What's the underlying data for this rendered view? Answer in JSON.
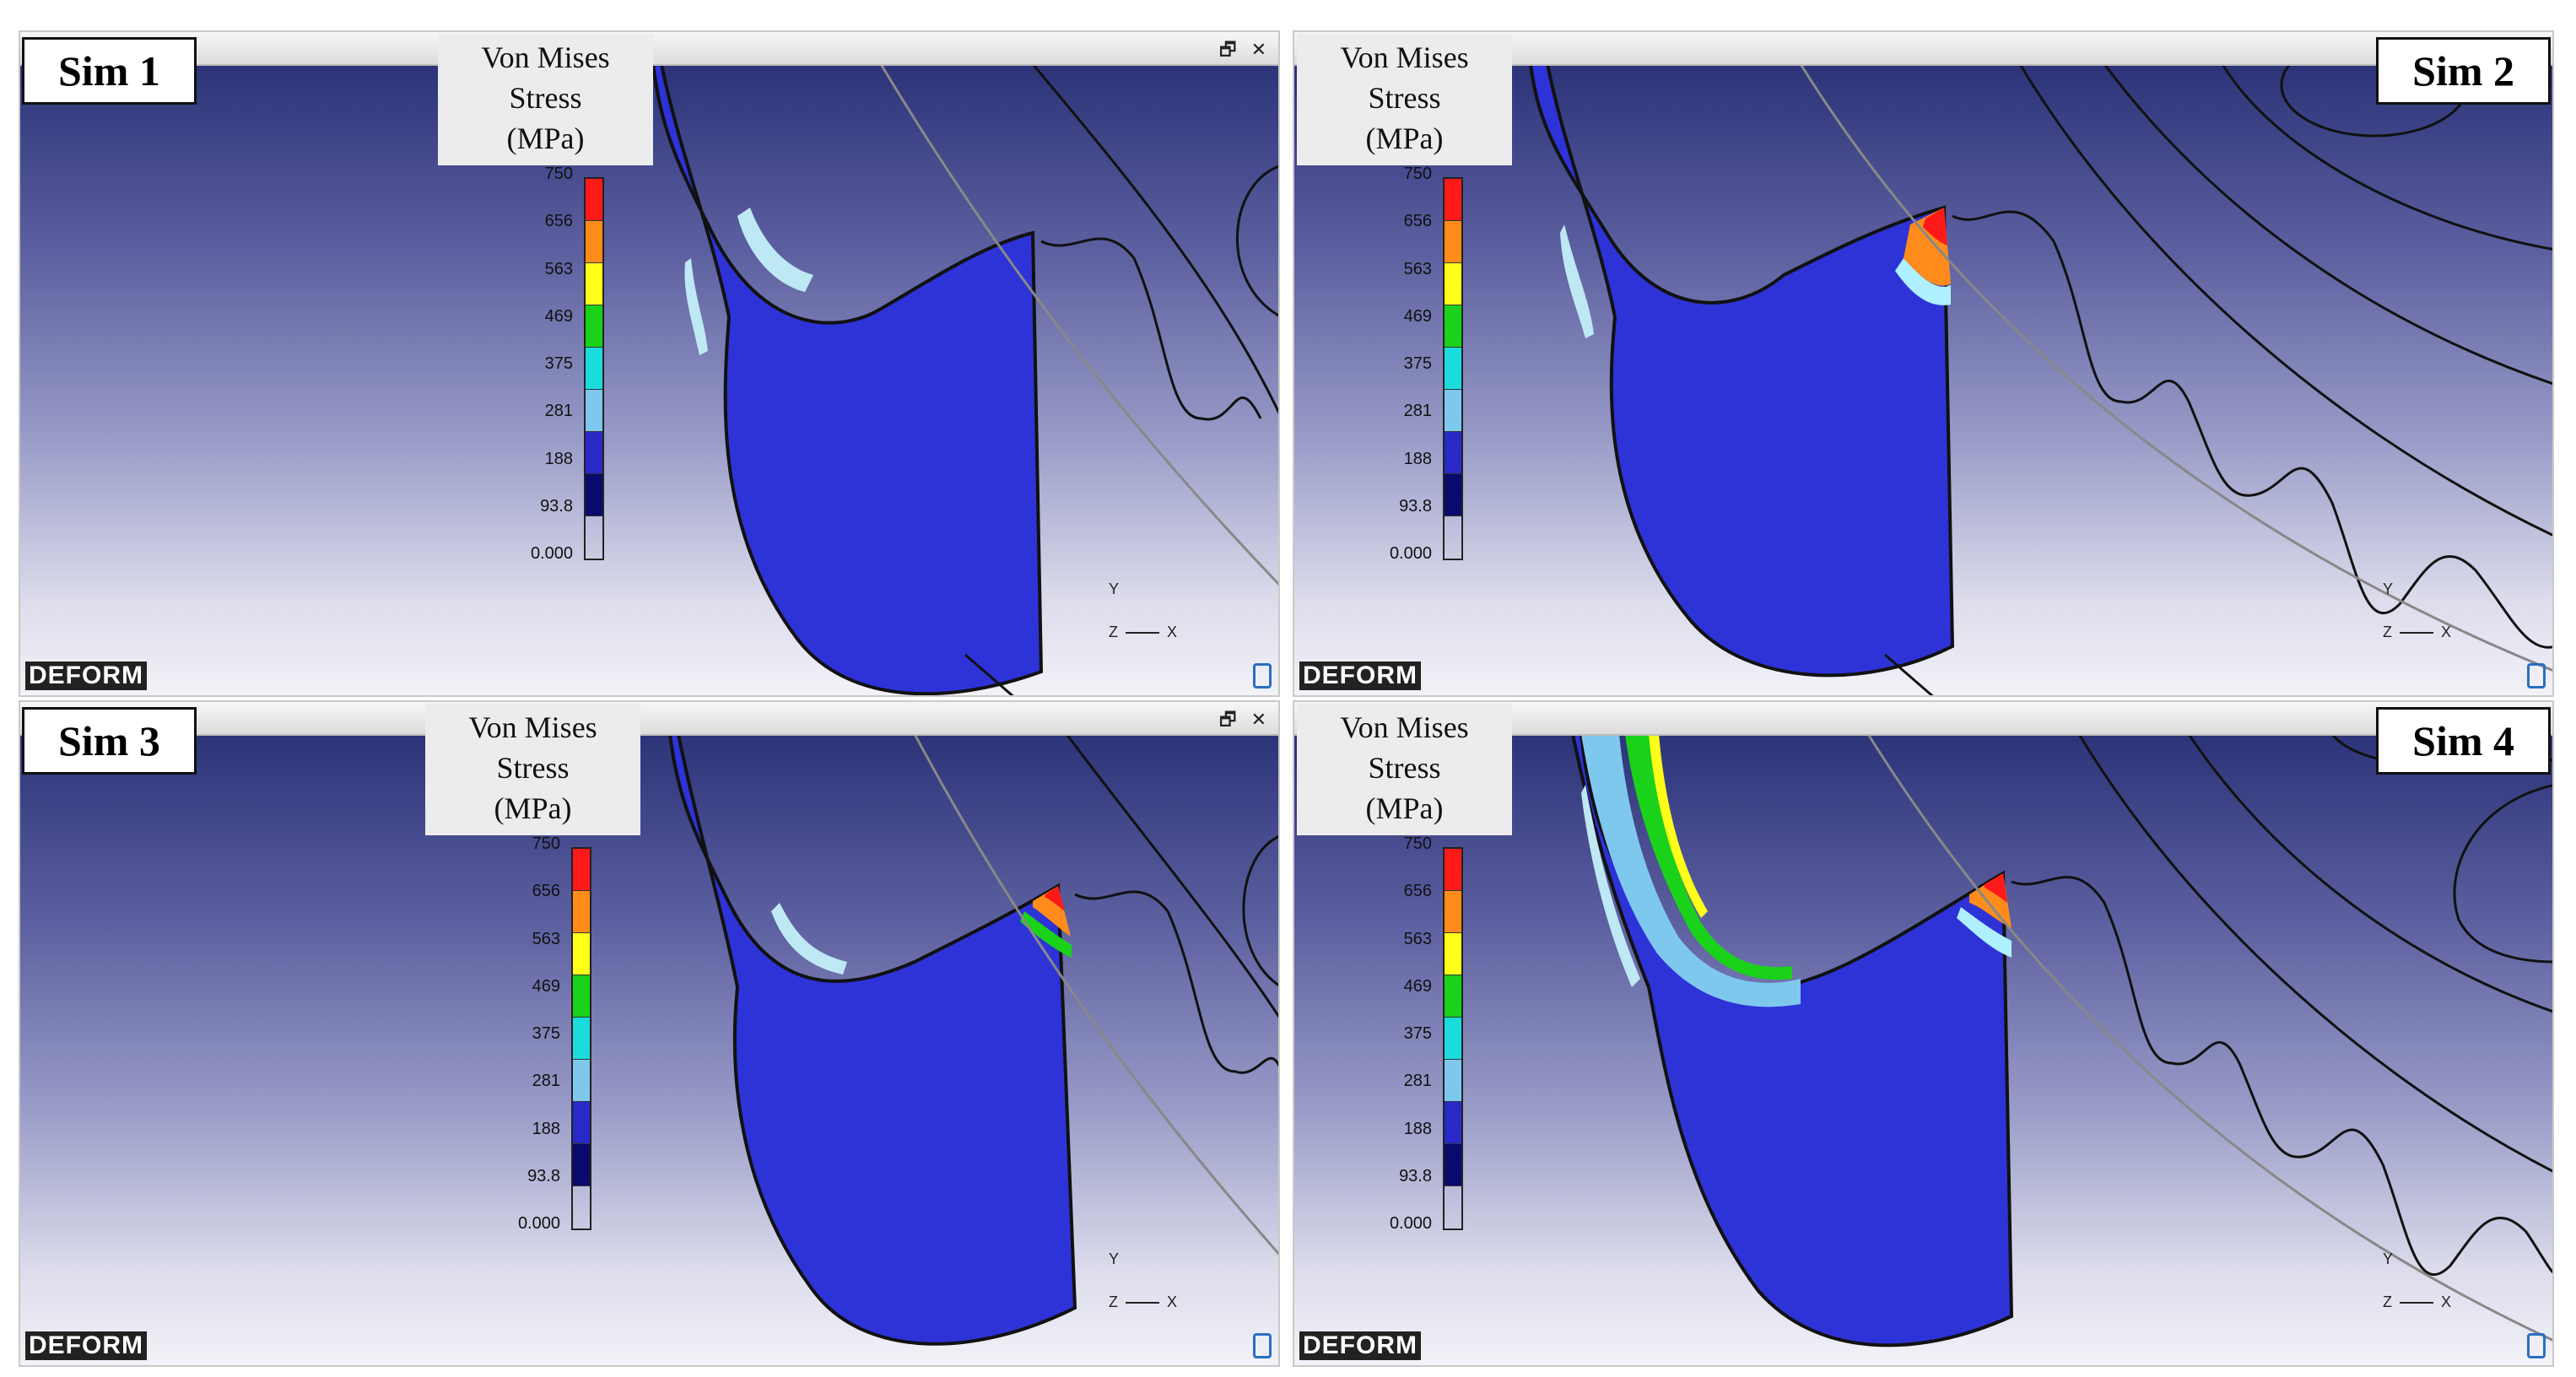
{
  "figure": {
    "panels": [
      {
        "id": "sim1",
        "label": "Sim 1"
      },
      {
        "id": "sim2",
        "label": "Sim 2"
      },
      {
        "id": "sim3",
        "label": "Sim 3"
      },
      {
        "id": "sim4",
        "label": "Sim 4"
      }
    ],
    "legend": {
      "title_line1": "Von Mises",
      "title_line2": "Stress",
      "title_line3": "(MPa)",
      "ticks": [
        "750",
        "656",
        "563",
        "469",
        "375",
        "281",
        "188",
        "93.8",
        "0.000"
      ],
      "colors": [
        "#ff1a1a",
        "#ff8c1a",
        "#ffff1a",
        "#1ad21a",
        "#1adcdc",
        "#7ec8ee",
        "#2929c8",
        "#0a0a6e"
      ]
    },
    "axes": {
      "y": "Y",
      "x": "X",
      "z": "Z"
    },
    "window_controls": {
      "restore": "🗗",
      "close": "✕"
    },
    "logo_text": "DEFORM"
  },
  "colors": {
    "body": "#2e33d8",
    "background_top": "#2c3378",
    "background_bottom": "#f2f2f8",
    "outline": "#111111"
  }
}
